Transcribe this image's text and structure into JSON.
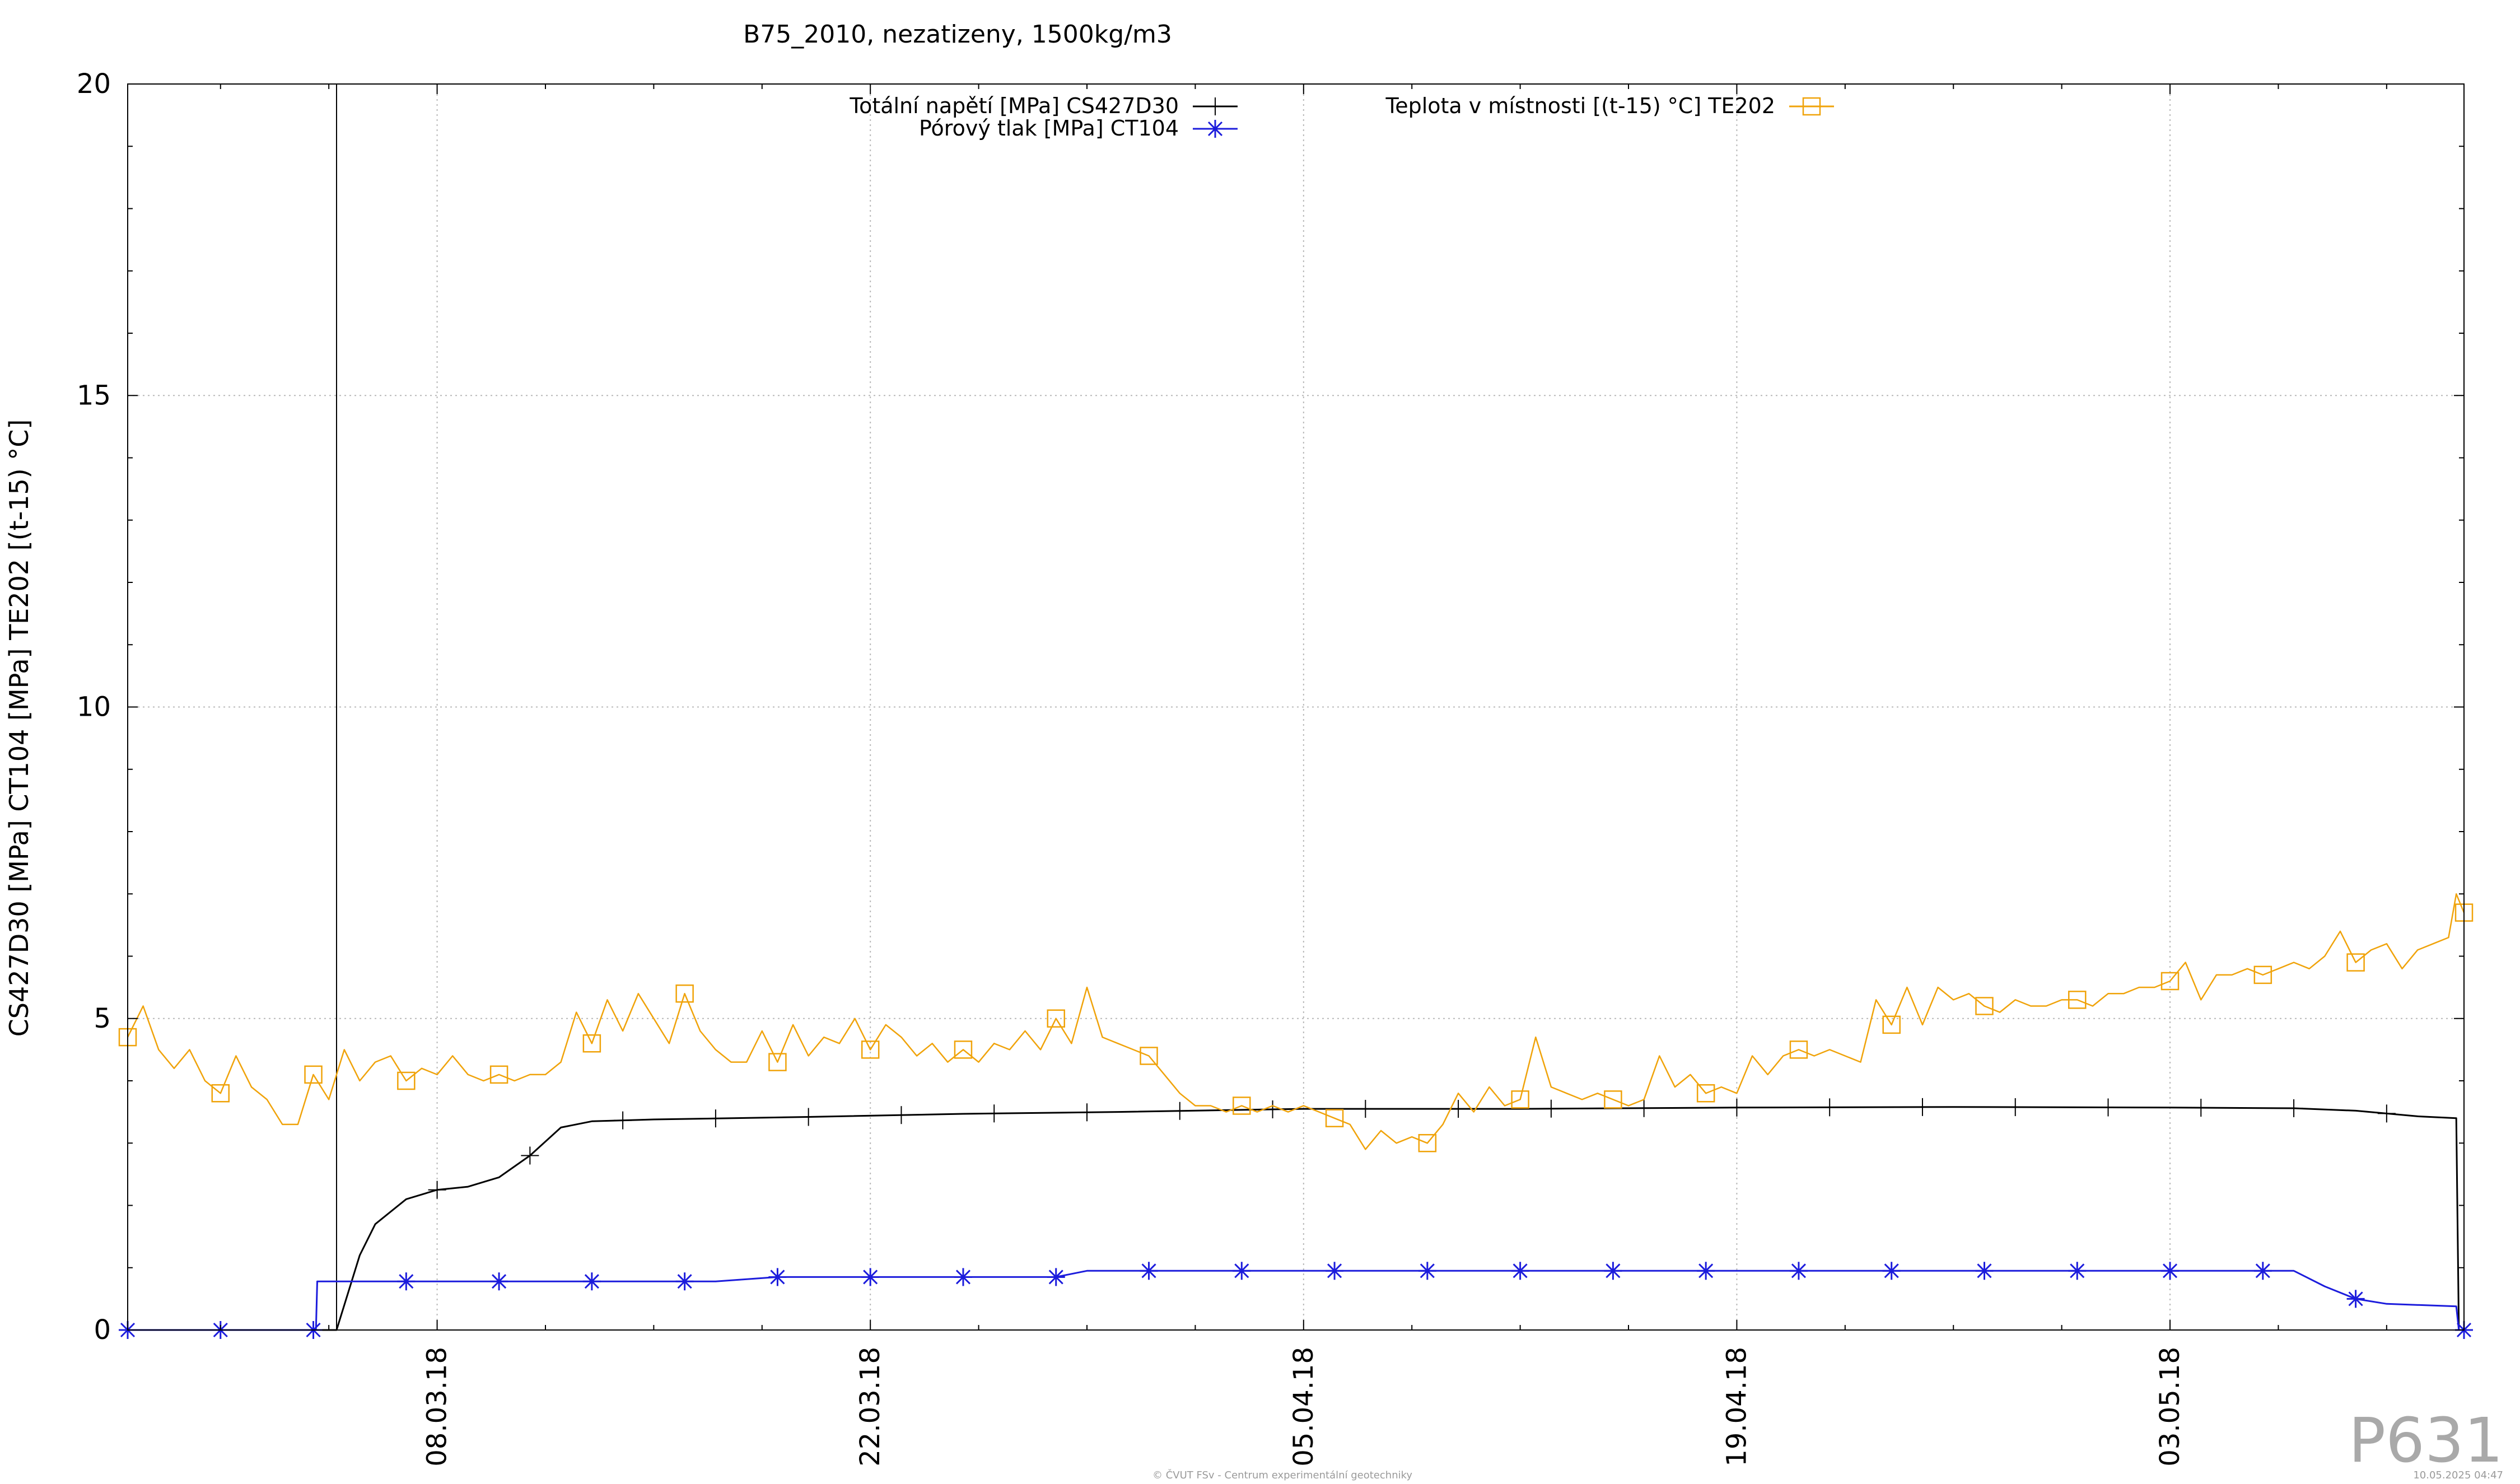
{
  "chart_data": {
    "type": "line",
    "title": "B75_2010, nezatizeny, 1500kg/m3",
    "ylabel": "CS427D30 [MPa] CT104 [MPa] TE202 [(t-15) °C]",
    "ylim": [
      0,
      20
    ],
    "yticks": [
      0,
      5,
      10,
      15,
      20
    ],
    "xlim": [
      "2018-02-26T00:00",
      "2018-05-12T12:00"
    ],
    "xticks": [
      {
        "date": "2018-03-08",
        "label": "08.03.18"
      },
      {
        "date": "2018-03-22",
        "label": "22.03.18"
      },
      {
        "date": "2018-04-05",
        "label": "05.04.18"
      },
      {
        "date": "2018-04-19",
        "label": "19.04.18"
      },
      {
        "date": "2018-05-03",
        "label": "03.05.18"
      }
    ],
    "grid": true,
    "legend_position": "top",
    "series": [
      {
        "name": "Totální napětí [MPa] CS427D30",
        "color": "#000000",
        "marker": "plus",
        "points": [
          [
            "2018-02-26T00:00",
            0
          ],
          [
            "2018-03-04T00:00",
            0
          ],
          [
            "2018-03-04T18:00",
            0
          ],
          [
            "2018-03-05T12:00",
            1.2
          ],
          [
            "2018-03-06T00:00",
            1.7
          ],
          [
            "2018-03-07T00:00",
            2.1
          ],
          [
            "2018-03-08T00:00",
            2.25
          ],
          [
            "2018-03-09T00:00",
            2.3
          ],
          [
            "2018-03-10T00:00",
            2.45
          ],
          [
            "2018-03-11T00:00",
            2.8
          ],
          [
            "2018-03-12T00:00",
            3.25
          ],
          [
            "2018-03-13T00:00",
            3.35
          ],
          [
            "2018-03-15T00:00",
            3.38
          ],
          [
            "2018-03-20T00:00",
            3.42
          ],
          [
            "2018-03-25T00:00",
            3.47
          ],
          [
            "2018-03-30T00:00",
            3.5
          ],
          [
            "2018-04-05T00:00",
            3.55
          ],
          [
            "2018-04-12T00:00",
            3.55
          ],
          [
            "2018-04-19T00:00",
            3.57
          ],
          [
            "2018-04-26T00:00",
            3.58
          ],
          [
            "2018-05-03T00:00",
            3.57
          ],
          [
            "2018-05-07T00:00",
            3.56
          ],
          [
            "2018-05-09T00:00",
            3.52
          ],
          [
            "2018-05-11T00:00",
            3.43
          ],
          [
            "2018-05-12T06:00",
            3.4
          ],
          [
            "2018-05-12T08:00",
            0
          ]
        ]
      },
      {
        "name": "Pórový tlak [MPa] CT104",
        "color": "#1c1cdc",
        "marker": "star",
        "points": [
          [
            "2018-02-26T00:00",
            0
          ],
          [
            "2018-03-04T02:00",
            0
          ],
          [
            "2018-03-04T03:00",
            0.78
          ],
          [
            "2018-03-10T00:00",
            0.78
          ],
          [
            "2018-03-17T00:00",
            0.78
          ],
          [
            "2018-03-19T00:00",
            0.85
          ],
          [
            "2018-03-28T00:00",
            0.85
          ],
          [
            "2018-03-29T00:00",
            0.95
          ],
          [
            "2018-04-15T00:00",
            0.95
          ],
          [
            "2018-05-06T00:00",
            0.95
          ],
          [
            "2018-05-07T00:00",
            0.95
          ],
          [
            "2018-05-08T00:00",
            0.7
          ],
          [
            "2018-05-09T00:00",
            0.5
          ],
          [
            "2018-05-10T00:00",
            0.42
          ],
          [
            "2018-05-12T06:00",
            0.38
          ],
          [
            "2018-05-12T08:00",
            0
          ]
        ]
      },
      {
        "name": "Teplota v místnosti [(t-15) °C] TE202",
        "color": "#f0a30a",
        "marker": "square",
        "points": [
          [
            "2018-02-26T00:00",
            4.7
          ],
          [
            "2018-02-26T12:00",
            5.2
          ],
          [
            "2018-02-27T00:00",
            4.5
          ],
          [
            "2018-02-27T12:00",
            4.2
          ],
          [
            "2018-02-28T00:00",
            4.5
          ],
          [
            "2018-02-28T12:00",
            4.0
          ],
          [
            "2018-03-01T00:00",
            3.8
          ],
          [
            "2018-03-01T12:00",
            4.4
          ],
          [
            "2018-03-02T00:00",
            3.9
          ],
          [
            "2018-03-02T12:00",
            3.7
          ],
          [
            "2018-03-03T00:00",
            3.3
          ],
          [
            "2018-03-03T12:00",
            3.3
          ],
          [
            "2018-03-04T00:00",
            4.1
          ],
          [
            "2018-03-04T12:00",
            3.7
          ],
          [
            "2018-03-05T00:00",
            4.5
          ],
          [
            "2018-03-05T12:00",
            4.0
          ],
          [
            "2018-03-06T00:00",
            4.3
          ],
          [
            "2018-03-06T12:00",
            4.4
          ],
          [
            "2018-03-07T00:00",
            4.0
          ],
          [
            "2018-03-07T12:00",
            4.2
          ],
          [
            "2018-03-08T00:00",
            4.1
          ],
          [
            "2018-03-08T12:00",
            4.4
          ],
          [
            "2018-03-09T00:00",
            4.1
          ],
          [
            "2018-03-09T12:00",
            4.0
          ],
          [
            "2018-03-10T00:00",
            4.1
          ],
          [
            "2018-03-10T12:00",
            4.0
          ],
          [
            "2018-03-11T00:00",
            4.1
          ],
          [
            "2018-03-11T12:00",
            4.1
          ],
          [
            "2018-03-12T00:00",
            4.3
          ],
          [
            "2018-03-12T12:00",
            5.1
          ],
          [
            "2018-03-13T00:00",
            4.6
          ],
          [
            "2018-03-13T12:00",
            5.3
          ],
          [
            "2018-03-14T00:00",
            4.8
          ],
          [
            "2018-03-14T12:00",
            5.4
          ],
          [
            "2018-03-15T00:00",
            5.0
          ],
          [
            "2018-03-15T12:00",
            4.6
          ],
          [
            "2018-03-16T00:00",
            5.4
          ],
          [
            "2018-03-16T12:00",
            4.8
          ],
          [
            "2018-03-17T00:00",
            4.5
          ],
          [
            "2018-03-17T12:00",
            4.3
          ],
          [
            "2018-03-18T00:00",
            4.3
          ],
          [
            "2018-03-18T12:00",
            4.8
          ],
          [
            "2018-03-19T00:00",
            4.3
          ],
          [
            "2018-03-19T12:00",
            4.9
          ],
          [
            "2018-03-20T00:00",
            4.4
          ],
          [
            "2018-03-20T12:00",
            4.7
          ],
          [
            "2018-03-21T00:00",
            4.6
          ],
          [
            "2018-03-21T12:00",
            5.0
          ],
          [
            "2018-03-22T00:00",
            4.5
          ],
          [
            "2018-03-22T12:00",
            4.9
          ],
          [
            "2018-03-23T00:00",
            4.7
          ],
          [
            "2018-03-23T12:00",
            4.4
          ],
          [
            "2018-03-24T00:00",
            4.6
          ],
          [
            "2018-03-24T12:00",
            4.3
          ],
          [
            "2018-03-25T00:00",
            4.5
          ],
          [
            "2018-03-25T12:00",
            4.3
          ],
          [
            "2018-03-26T00:00",
            4.6
          ],
          [
            "2018-03-26T12:00",
            4.5
          ],
          [
            "2018-03-27T00:00",
            4.8
          ],
          [
            "2018-03-27T12:00",
            4.5
          ],
          [
            "2018-03-28T00:00",
            5.0
          ],
          [
            "2018-03-28T12:00",
            4.6
          ],
          [
            "2018-03-29T00:00",
            5.5
          ],
          [
            "2018-03-29T12:00",
            4.7
          ],
          [
            "2018-03-30T00:00",
            4.6
          ],
          [
            "2018-03-30T12:00",
            4.5
          ],
          [
            "2018-03-31T00:00",
            4.4
          ],
          [
            "2018-03-31T12:00",
            4.1
          ],
          [
            "2018-04-01T00:00",
            3.8
          ],
          [
            "2018-04-01T12:00",
            3.6
          ],
          [
            "2018-04-02T00:00",
            3.6
          ],
          [
            "2018-04-02T12:00",
            3.5
          ],
          [
            "2018-04-03T00:00",
            3.6
          ],
          [
            "2018-04-03T12:00",
            3.5
          ],
          [
            "2018-04-04T00:00",
            3.6
          ],
          [
            "2018-04-04T12:00",
            3.5
          ],
          [
            "2018-04-05T00:00",
            3.6
          ],
          [
            "2018-04-05T12:00",
            3.5
          ],
          [
            "2018-04-06T00:00",
            3.4
          ],
          [
            "2018-04-06T12:00",
            3.3
          ],
          [
            "2018-04-07T00:00",
            2.9
          ],
          [
            "2018-04-07T12:00",
            3.2
          ],
          [
            "2018-04-08T00:00",
            3.0
          ],
          [
            "2018-04-08T12:00",
            3.1
          ],
          [
            "2018-04-09T00:00",
            3.0
          ],
          [
            "2018-04-09T12:00",
            3.3
          ],
          [
            "2018-04-10T00:00",
            3.8
          ],
          [
            "2018-04-10T12:00",
            3.5
          ],
          [
            "2018-04-11T00:00",
            3.9
          ],
          [
            "2018-04-11T12:00",
            3.6
          ],
          [
            "2018-04-12T00:00",
            3.7
          ],
          [
            "2018-04-12T12:00",
            4.7
          ],
          [
            "2018-04-13T00:00",
            3.9
          ],
          [
            "2018-04-13T12:00",
            3.8
          ],
          [
            "2018-04-14T00:00",
            3.7
          ],
          [
            "2018-04-14T12:00",
            3.8
          ],
          [
            "2018-04-15T00:00",
            3.7
          ],
          [
            "2018-04-15T12:00",
            3.6
          ],
          [
            "2018-04-16T00:00",
            3.7
          ],
          [
            "2018-04-16T12:00",
            4.4
          ],
          [
            "2018-04-17T00:00",
            3.9
          ],
          [
            "2018-04-17T12:00",
            4.1
          ],
          [
            "2018-04-18T00:00",
            3.8
          ],
          [
            "2018-04-18T12:00",
            3.9
          ],
          [
            "2018-04-19T00:00",
            3.8
          ],
          [
            "2018-04-19T12:00",
            4.4
          ],
          [
            "2018-04-20T00:00",
            4.1
          ],
          [
            "2018-04-20T12:00",
            4.4
          ],
          [
            "2018-04-21T00:00",
            4.5
          ],
          [
            "2018-04-21T12:00",
            4.4
          ],
          [
            "2018-04-22T00:00",
            4.5
          ],
          [
            "2018-04-22T12:00",
            4.4
          ],
          [
            "2018-04-23T00:00",
            4.3
          ],
          [
            "2018-04-23T12:00",
            5.3
          ],
          [
            "2018-04-24T00:00",
            4.9
          ],
          [
            "2018-04-24T12:00",
            5.5
          ],
          [
            "2018-04-25T00:00",
            4.9
          ],
          [
            "2018-04-25T12:00",
            5.5
          ],
          [
            "2018-04-26T00:00",
            5.3
          ],
          [
            "2018-04-26T12:00",
            5.4
          ],
          [
            "2018-04-27T00:00",
            5.2
          ],
          [
            "2018-04-27T12:00",
            5.1
          ],
          [
            "2018-04-28T00:00",
            5.3
          ],
          [
            "2018-04-28T12:00",
            5.2
          ],
          [
            "2018-04-29T00:00",
            5.2
          ],
          [
            "2018-04-29T12:00",
            5.3
          ],
          [
            "2018-04-30T00:00",
            5.3
          ],
          [
            "2018-04-30T12:00",
            5.2
          ],
          [
            "2018-05-01T00:00",
            5.4
          ],
          [
            "2018-05-01T12:00",
            5.4
          ],
          [
            "2018-05-02T00:00",
            5.5
          ],
          [
            "2018-05-02T12:00",
            5.5
          ],
          [
            "2018-05-03T00:00",
            5.6
          ],
          [
            "2018-05-03T12:00",
            5.9
          ],
          [
            "2018-05-04T00:00",
            5.3
          ],
          [
            "2018-05-04T12:00",
            5.7
          ],
          [
            "2018-05-05T00:00",
            5.7
          ],
          [
            "2018-05-05T12:00",
            5.8
          ],
          [
            "2018-05-06T00:00",
            5.7
          ],
          [
            "2018-05-06T12:00",
            5.8
          ],
          [
            "2018-05-07T00:00",
            5.9
          ],
          [
            "2018-05-07T12:00",
            5.8
          ],
          [
            "2018-05-08T00:00",
            6.0
          ],
          [
            "2018-05-08T12:00",
            6.4
          ],
          [
            "2018-05-09T00:00",
            5.9
          ],
          [
            "2018-05-09T12:00",
            6.1
          ],
          [
            "2018-05-10T00:00",
            6.2
          ],
          [
            "2018-05-10T12:00",
            5.8
          ],
          [
            "2018-05-11T00:00",
            6.1
          ],
          [
            "2018-05-11T12:00",
            6.2
          ],
          [
            "2018-05-12T00:00",
            6.3
          ],
          [
            "2018-05-12T06:00",
            7.0
          ],
          [
            "2018-05-12T12:00",
            6.7
          ]
        ]
      }
    ],
    "markers": {
      "Totální napětí [MPa] CS427D30": [
        "2018-03-08T00:00",
        "2018-03-11T00:00",
        "2018-03-14T00:00",
        "2018-03-17T00:00",
        "2018-03-20T00:00",
        "2018-03-23T00:00",
        "2018-03-26T00:00",
        "2018-03-29T00:00",
        "2018-04-01T00:00",
        "2018-04-04T00:00",
        "2018-04-07T00:00",
        "2018-04-10T00:00",
        "2018-04-13T00:00",
        "2018-04-16T00:00",
        "2018-04-19T00:00",
        "2018-04-22T00:00",
        "2018-04-25T00:00",
        "2018-04-28T00:00",
        "2018-05-01T00:00",
        "2018-05-04T00:00",
        "2018-05-07T00:00",
        "2018-05-10T00:00"
      ],
      "Pórový tlak [MPa] CT104": [
        "2018-02-26T00:00",
        "2018-03-01T00:00",
        "2018-03-04T00:00",
        "2018-03-07T00:00",
        "2018-03-10T00:00",
        "2018-03-13T00:00",
        "2018-03-16T00:00",
        "2018-03-19T00:00",
        "2018-03-22T00:00",
        "2018-03-25T00:00",
        "2018-03-28T00:00",
        "2018-03-31T00:00",
        "2018-04-03T00:00",
        "2018-04-06T00:00",
        "2018-04-09T00:00",
        "2018-04-12T00:00",
        "2018-04-15T00:00",
        "2018-04-18T00:00",
        "2018-04-21T00:00",
        "2018-04-24T00:00",
        "2018-04-27T00:00",
        "2018-04-30T00:00",
        "2018-05-03T00:00",
        "2018-05-06T00:00",
        "2018-05-09T00:00",
        "2018-05-12T12:00"
      ],
      "Teplota v místnosti [(t-15) °C] TE202": [
        "2018-02-26T00:00",
        "2018-03-01T00:00",
        "2018-03-04T00:00",
        "2018-03-07T00:00",
        "2018-03-10T00:00",
        "2018-03-13T00:00",
        "2018-03-16T00:00",
        "2018-03-19T00:00",
        "2018-03-22T00:00",
        "2018-03-25T00:00",
        "2018-03-28T00:00",
        "2018-03-31T00:00",
        "2018-04-03T00:00",
        "2018-04-06T00:00",
        "2018-04-09T00:00",
        "2018-04-12T00:00",
        "2018-04-15T00:00",
        "2018-04-18T00:00",
        "2018-04-21T00:00",
        "2018-04-24T00:00",
        "2018-04-27T00:00",
        "2018-04-30T00:00",
        "2018-05-03T00:00",
        "2018-05-06T00:00",
        "2018-05-09T00:00",
        "2018-05-12T12:00"
      ]
    },
    "vertical_line": "2018-03-04T18:00"
  },
  "watermark": "P631",
  "footer_credit": "© ČVUT FSv - Centrum experimentální geotechniky",
  "footer_timestamp": "10.05.2025 04:47"
}
